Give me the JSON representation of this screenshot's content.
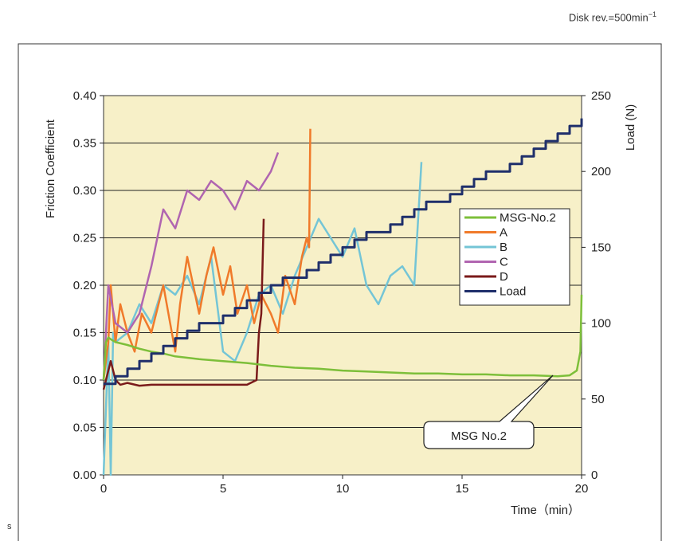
{
  "note": {
    "prefix": "Disk rev.=500min",
    "sup": "−1"
  },
  "stray_mark": "s",
  "callout_label": "MSG No.2",
  "colors": {
    "plot_bg": "#f7f0c8",
    "frame": "#333333",
    "MSG-No.2": "#7dbf3a",
    "A": "#f07a2a",
    "B": "#74c5d6",
    "C": "#b065b0",
    "D": "#7a1a1a",
    "Load": "#1f2f6b"
  },
  "chart_data": {
    "type": "line",
    "xlabel": "Time（min）",
    "ylabel": "Friction Coefficient",
    "y2label": "Load (N)",
    "xlim": [
      0,
      20
    ],
    "ylim": [
      0,
      0.4
    ],
    "y2lim": [
      0,
      250
    ],
    "xticks": [
      "0",
      "5",
      "10",
      "15",
      "20"
    ],
    "yticks": [
      "0.00",
      "0.05",
      "0.10",
      "0.15",
      "0.20",
      "0.25",
      "0.30",
      "0.35",
      "0.40"
    ],
    "y2ticks": [
      "0",
      "50",
      "100",
      "150",
      "200",
      "250"
    ],
    "grid": "horizontal",
    "legend_position": "right",
    "series": [
      {
        "name": "MSG-No.2",
        "axis": "left",
        "x": [
          0,
          0.1,
          0.2,
          0.3,
          0.5,
          1,
          1.5,
          2,
          2.5,
          3,
          4,
          5,
          6,
          7,
          8,
          9,
          10,
          11,
          12,
          13,
          14,
          15,
          16,
          17,
          18,
          19,
          19.5,
          19.8,
          19.95,
          20
        ],
        "y": [
          0.1,
          0.14,
          0.145,
          0.143,
          0.14,
          0.137,
          0.133,
          0.13,
          0.128,
          0.125,
          0.122,
          0.12,
          0.118,
          0.115,
          0.113,
          0.112,
          0.11,
          0.109,
          0.108,
          0.107,
          0.107,
          0.106,
          0.106,
          0.105,
          0.105,
          0.104,
          0.105,
          0.11,
          0.13,
          0.19
        ]
      },
      {
        "name": "A",
        "axis": "left",
        "x": [
          0,
          0.2,
          0.3,
          0.5,
          0.7,
          1,
          1.3,
          1.6,
          2,
          2.5,
          3,
          3.2,
          3.5,
          4,
          4.3,
          4.6,
          5,
          5.3,
          5.6,
          6,
          6.3,
          6.6,
          7,
          7.3,
          7.6,
          8,
          8.3,
          8.5,
          8.6,
          8.65
        ],
        "y": [
          0.1,
          0.14,
          0.2,
          0.14,
          0.18,
          0.15,
          0.13,
          0.17,
          0.15,
          0.2,
          0.13,
          0.18,
          0.23,
          0.17,
          0.21,
          0.24,
          0.19,
          0.22,
          0.17,
          0.2,
          0.16,
          0.19,
          0.17,
          0.15,
          0.21,
          0.18,
          0.23,
          0.25,
          0.24,
          0.365
        ]
      },
      {
        "name": "B",
        "axis": "left",
        "x": [
          0,
          0.2,
          0.3,
          0.4,
          0.5,
          1,
          1.5,
          2,
          2.5,
          3,
          3.5,
          4,
          4.5,
          5,
          5.5,
          6,
          6.5,
          7,
          7.5,
          8,
          8.5,
          9,
          9.5,
          10,
          10.5,
          11,
          11.5,
          12,
          12.5,
          13,
          13.3
        ],
        "y": [
          0.0,
          0.14,
          0.0,
          0.15,
          0.14,
          0.15,
          0.18,
          0.16,
          0.2,
          0.19,
          0.21,
          0.18,
          0.23,
          0.13,
          0.12,
          0.15,
          0.19,
          0.2,
          0.17,
          0.21,
          0.24,
          0.27,
          0.25,
          0.23,
          0.26,
          0.2,
          0.18,
          0.21,
          0.22,
          0.2,
          0.33
        ]
      },
      {
        "name": "C",
        "axis": "left",
        "x": [
          0,
          0.2,
          0.5,
          1,
          1.5,
          2,
          2.5,
          3,
          3.5,
          4,
          4.5,
          5,
          5.5,
          6,
          6.5,
          7,
          7.3
        ],
        "y": [
          0.1,
          0.2,
          0.16,
          0.15,
          0.17,
          0.22,
          0.28,
          0.26,
          0.3,
          0.29,
          0.31,
          0.3,
          0.28,
          0.31,
          0.3,
          0.32,
          0.34
        ]
      },
      {
        "name": "D",
        "axis": "left",
        "x": [
          0,
          0.3,
          0.5,
          0.7,
          1,
          1.5,
          2,
          3,
          4,
          5,
          6,
          6.4,
          6.5,
          6.6,
          6.7
        ],
        "y": [
          0.09,
          0.12,
          0.1,
          0.095,
          0.097,
          0.094,
          0.095,
          0.095,
          0.095,
          0.095,
          0.095,
          0.1,
          0.15,
          0.17,
          0.27
        ]
      },
      {
        "name": "Load",
        "axis": "right",
        "x": [
          0,
          0.5,
          1,
          1.5,
          2,
          2.5,
          3,
          3.5,
          4,
          4.5,
          5,
          5.5,
          6,
          6.5,
          7,
          7.5,
          8,
          8.5,
          9,
          9.5,
          10,
          10.5,
          11,
          11.5,
          12,
          12.5,
          13,
          13.5,
          14,
          14.5,
          15,
          15.5,
          16,
          16.5,
          17,
          17.5,
          18,
          18.5,
          19,
          19.5,
          20
        ],
        "y": [
          60,
          65,
          70,
          75,
          80,
          85,
          90,
          95,
          100,
          100,
          105,
          110,
          115,
          120,
          125,
          130,
          130,
          135,
          140,
          145,
          150,
          155,
          160,
          160,
          165,
          170,
          175,
          180,
          180,
          185,
          190,
          195,
          200,
          200,
          205,
          210,
          215,
          220,
          225,
          230,
          235
        ]
      }
    ]
  }
}
